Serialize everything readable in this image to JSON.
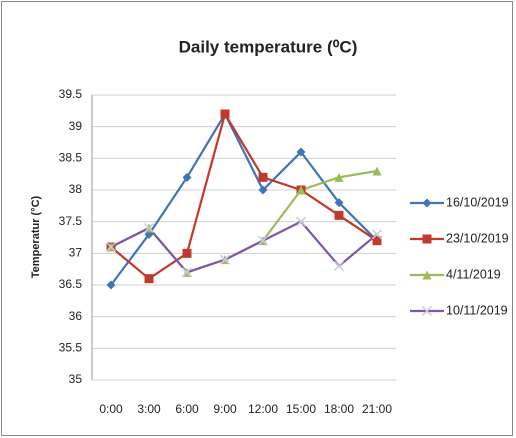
{
  "chart_data": {
    "type": "line",
    "title": "Daily temperature (⁰C)",
    "y_label": "Temperatur (°C)",
    "categories": [
      "0:00",
      "3:00",
      "6:00",
      "9:00",
      "12:00",
      "15:00",
      "18:00",
      "21:00"
    ],
    "series": [
      {
        "name": "16/10/2019",
        "color": "#3f74b5",
        "marker": "diamond",
        "values": [
          36.5,
          37.3,
          38.2,
          39.2,
          38.0,
          38.6,
          37.8,
          37.2
        ]
      },
      {
        "name": "23/10/2019",
        "color": "#c0392b",
        "marker": "square",
        "values": [
          37.1,
          36.6,
          37.0,
          39.2,
          38.2,
          38.0,
          37.6,
          37.2
        ]
      },
      {
        "name": "4/11/2019",
        "color": "#9bbb59",
        "marker": "triangle",
        "values": [
          37.1,
          37.4,
          36.7,
          36.9,
          37.2,
          38.0,
          38.2,
          38.3
        ]
      },
      {
        "name": "10/11/2019",
        "color": "#7e57a6",
        "marker": "x",
        "values": [
          37.1,
          37.4,
          36.7,
          36.9,
          37.2,
          37.5,
          36.8,
          37.3
        ]
      }
    ],
    "ylim": [
      35,
      39.5
    ],
    "yticks": [
      35,
      35.5,
      36,
      36.5,
      37,
      37.5,
      38,
      38.5,
      39,
      39.5
    ],
    "grid": true,
    "legend": "right"
  }
}
